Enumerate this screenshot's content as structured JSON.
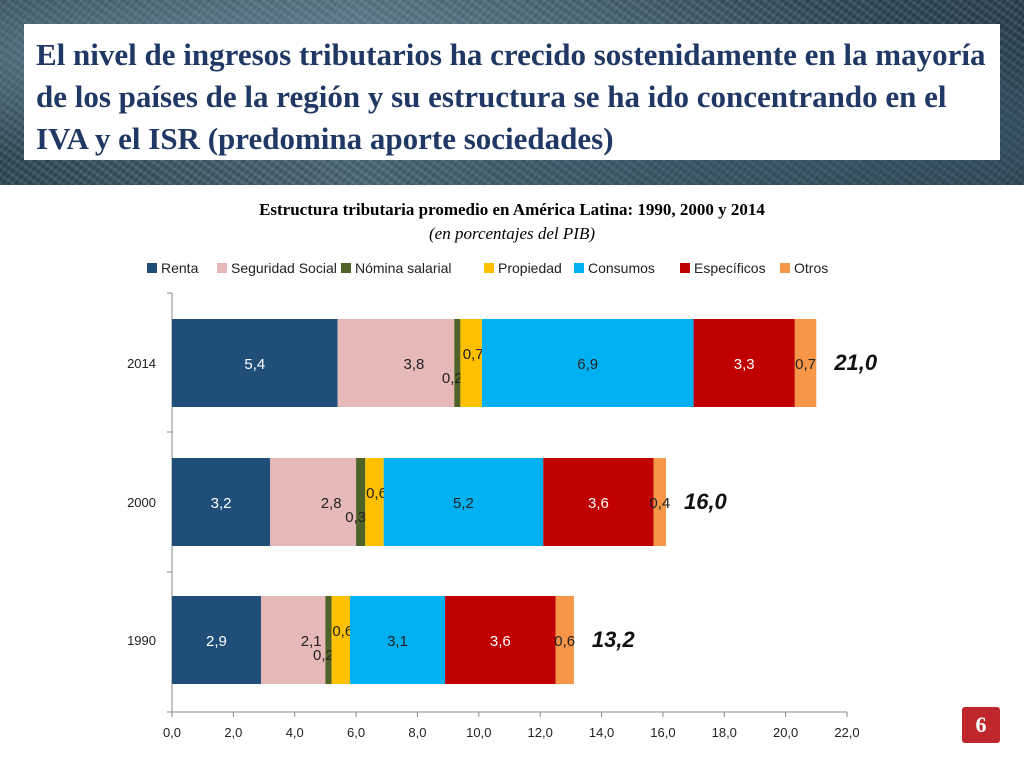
{
  "header": {
    "title": "El nivel de ingresos tributarios ha crecido sostenidamente en la mayoría de los países de la región y su estructura se ha ido concentrando en el IVA y el ISR (predomina aporte sociedades)"
  },
  "page_number": "6",
  "chart_data": {
    "type": "bar",
    "orientation": "horizontal",
    "stacked": true,
    "title": "Estructura tributaria promedio en América Latina: 1990, 2000 y 2014",
    "subtitle": "(en porcentajes del PIB)",
    "legend_position": "top",
    "categories": [
      "2014",
      "2000",
      "1990"
    ],
    "series": [
      {
        "name": "Renta",
        "color": "#1f4e79",
        "values": [
          5.4,
          3.2,
          2.9
        ],
        "labels": [
          "5,4",
          "3,2",
          "2,9"
        ]
      },
      {
        "name": "Seguridad Social",
        "color": "#e6b9b8",
        "values": [
          3.8,
          2.8,
          2.1
        ],
        "labels": [
          "3,8",
          "2,8",
          "2,1"
        ]
      },
      {
        "name": "Nómina salarial",
        "color": "#4f6228",
        "values": [
          0.2,
          0.3,
          0.2
        ],
        "labels": [
          "0,2",
          "0,3",
          "0,2"
        ]
      },
      {
        "name": "Propiedad",
        "color": "#ffc000",
        "values": [
          0.7,
          0.6,
          0.6
        ],
        "labels": [
          "0,7",
          "0,6",
          "0,6"
        ]
      },
      {
        "name": "Consumos",
        "color": "#00b0f0",
        "values": [
          6.9,
          5.2,
          3.1
        ],
        "labels": [
          "6,9",
          "5,2",
          "3,1"
        ]
      },
      {
        "name": "Específicos",
        "color": "#c00000",
        "values": [
          3.3,
          3.6,
          3.6
        ],
        "labels": [
          "3,3",
          "3,6",
          "3,6"
        ]
      },
      {
        "name": "Otros",
        "color": "#f79646",
        "values": [
          0.7,
          0.4,
          0.6
        ],
        "labels": [
          "0,7",
          "0,4",
          "0,6"
        ]
      }
    ],
    "totals": [
      "21,0",
      "16,0",
      "13,2"
    ],
    "x_ticks": [
      "0,0",
      "2,0",
      "4,0",
      "6,0",
      "8,0",
      "10,0",
      "12,0",
      "14,0",
      "16,0",
      "18,0",
      "20,0",
      "22,0"
    ],
    "xlim": [
      0,
      22
    ],
    "grid": false
  }
}
